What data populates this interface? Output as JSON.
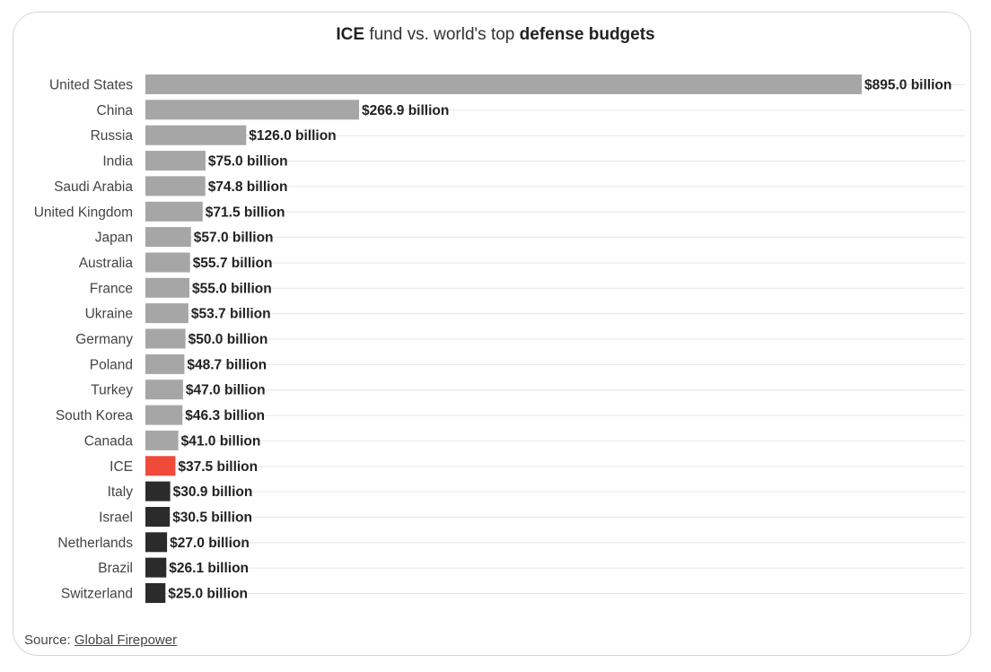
{
  "title": {
    "part1": "ICE",
    "part2": " fund vs. world's top ",
    "part3": "defense budgets"
  },
  "source": {
    "label": "Source: ",
    "link_text": "Global Firepower"
  },
  "colors": {
    "default_bar": "#a6a6a6",
    "highlight_bar": "#f04a3a",
    "below_bar": "#2b2b2b",
    "gridline": "#e6e6e6",
    "label_text": "#444444",
    "value_text": "#222222"
  },
  "chart_data": {
    "type": "bar",
    "orientation": "horizontal",
    "unit": "billion USD",
    "categories": [
      "United States",
      "China",
      "Russia",
      "India",
      "Saudi Arabia",
      "United Kingdom",
      "Japan",
      "Australia",
      "France",
      "Ukraine",
      "Germany",
      "Poland",
      "Turkey",
      "South Korea",
      "Canada",
      "ICE",
      "Italy",
      "Israel",
      "Netherlands",
      "Brazil",
      "Switzerland"
    ],
    "values": [
      895.0,
      266.9,
      126.0,
      75.0,
      74.8,
      71.5,
      57.0,
      55.7,
      55.0,
      53.7,
      50.0,
      48.7,
      47.0,
      46.3,
      41.0,
      37.5,
      30.9,
      30.5,
      27.0,
      26.1,
      25.0
    ],
    "value_labels": [
      "$895.0 billion",
      "$266.9 billion",
      "$126.0 billion",
      "$75.0 billion",
      "$74.8 billion",
      "$71.5 billion",
      "$57.0 billion",
      "$55.7 billion",
      "$55.0 billion",
      "$53.7 billion",
      "$50.0 billion",
      "$48.7 billion",
      "$47.0 billion",
      "$46.3 billion",
      "$41.0 billion",
      "$37.5 billion",
      "$30.9 billion",
      "$30.5 billion",
      "$27.0 billion",
      "$26.1 billion",
      "$25.0 billion"
    ],
    "bar_groups": [
      "default",
      "default",
      "default",
      "default",
      "default",
      "default",
      "default",
      "default",
      "default",
      "default",
      "default",
      "default",
      "default",
      "default",
      "default",
      "highlight",
      "below",
      "below",
      "below",
      "below",
      "below"
    ],
    "xlim": [
      0,
      895
    ],
    "grid": true,
    "legend": "none"
  }
}
